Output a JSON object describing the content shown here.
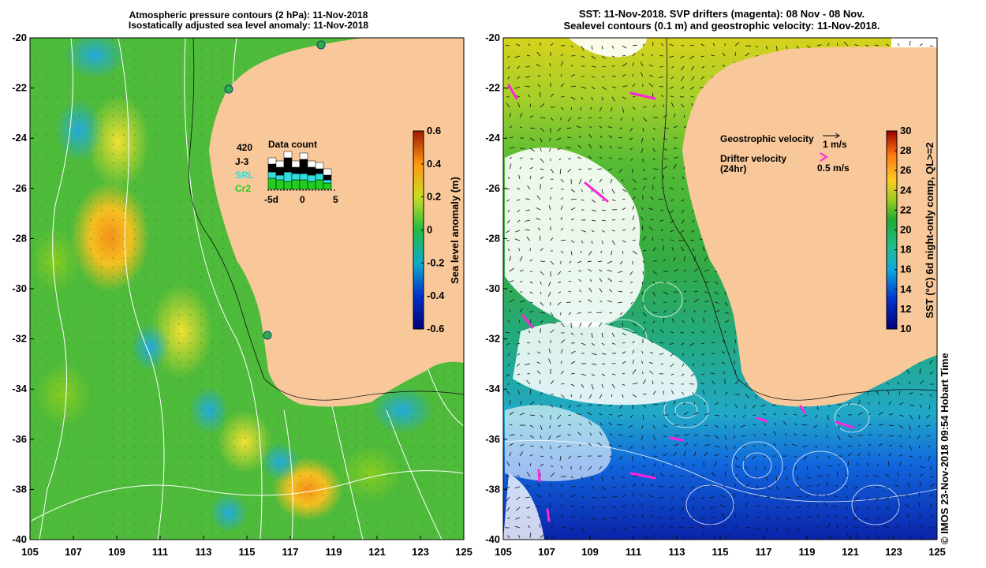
{
  "left_panel": {
    "title_line1": "Atmospheric pressure contours (2 hPa): 11-Nov-2018",
    "title_line2": "Isostatically adjusted sea level anomaly: 11-Nov-2018",
    "y_ticks": [
      "-20",
      "-22",
      "-24",
      "-26",
      "-28",
      "-30",
      "-32",
      "-34",
      "-36",
      "-38",
      "-40"
    ],
    "x_ticks": [
      "105",
      "107",
      "109",
      "111",
      "113",
      "115",
      "117",
      "119",
      "121",
      "123",
      "125"
    ],
    "colorbar": {
      "label": "Sea level anomaly (m)",
      "ticks": [
        "0.6",
        "0.4",
        "0.2",
        "0",
        "-0.2",
        "-0.4",
        "-0.6"
      ],
      "range": [
        -0.6,
        0.6
      ]
    },
    "inset": {
      "title": "Data count",
      "count": "420",
      "missions": [
        {
          "name": "J-3",
          "color": "#000000"
        },
        {
          "name": "SRL",
          "color": "#33dddd"
        },
        {
          "name": "Cr2",
          "color": "#22cc22"
        }
      ],
      "x_ticks": [
        "-5d",
        "0",
        "5"
      ]
    },
    "tide_gauges": [
      {
        "lon": 114.2,
        "lat": -22.0
      },
      {
        "lon": 118.5,
        "lat": -20.3
      },
      {
        "lon": 115.9,
        "lat": -31.8
      }
    ]
  },
  "right_panel": {
    "title_line1": "SST: 11-Nov-2018. SVP drifters (magenta): 08 Nov - 08 Nov.",
    "title_line2": "Sealevel contours (0.1 m) and geostrophic velocity: 11-Nov-2018.",
    "y_ticks": [
      "-20",
      "-22",
      "-24",
      "-26",
      "-28",
      "-30",
      "-32",
      "-34",
      "-36",
      "-38",
      "-40"
    ],
    "x_ticks": [
      "105",
      "107",
      "109",
      "111",
      "113",
      "115",
      "117",
      "119",
      "121",
      "123",
      "125"
    ],
    "legend": {
      "geostrophic_label": "Geostrophic velocity",
      "geostrophic_value": "1 m/s",
      "drifter_label": "Drifter velocity",
      "drifter_sub": "(24hr)",
      "drifter_value": "0.5 m/s"
    },
    "colorbar": {
      "label": "SST (°C) 6d night-only comp, QL>=2",
      "ticks": [
        "30",
        "28",
        "26",
        "24",
        "22",
        "20",
        "18",
        "16",
        "14",
        "12",
        "10"
      ],
      "range": [
        10,
        30
      ]
    }
  },
  "credit": "© IMOS 23-Nov-2018 09:54 Hobart Time",
  "colors": {
    "land": "#f9c89a",
    "drifter": "#ff22dd",
    "contour": "#ffffff"
  }
}
